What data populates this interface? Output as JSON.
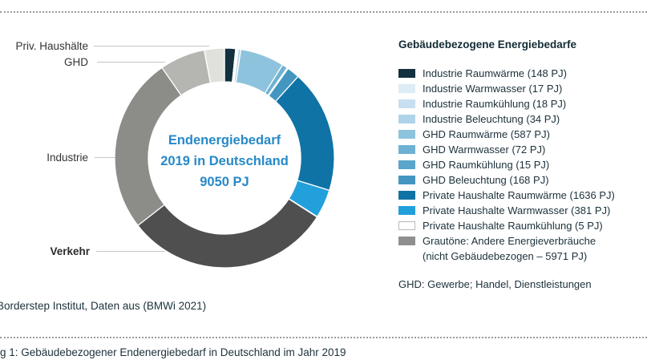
{
  "chart_data": {
    "type": "pie",
    "subtype": "donut",
    "title": "Endenergiebedarf 2019 in Deutschland 9050 PJ",
    "unit": "PJ",
    "total_pj": 9050,
    "start_angle_deg": 0,
    "direction": "clockwise",
    "segments": [
      {
        "name": "Industrie Raumwärme",
        "value_pj": 148,
        "color": "#12303e"
      },
      {
        "name": "Industrie Warmwasser",
        "value_pj": 17,
        "color": "#ddecf5"
      },
      {
        "name": "Industrie Raumkühlung",
        "value_pj": 18,
        "color": "#c7dff0"
      },
      {
        "name": "Industrie Beleuchtung",
        "value_pj": 34,
        "color": "#afd3e8"
      },
      {
        "name": "GHD Raumwärme",
        "value_pj": 587,
        "color": "#8ec3dd"
      },
      {
        "name": "GHD Warmwasser",
        "value_pj": 72,
        "color": "#6fb1d3"
      },
      {
        "name": "GHD Raumkühlung",
        "value_pj": 15,
        "color": "#5aa5cb"
      },
      {
        "name": "GHD Beleuchtung",
        "value_pj": 168,
        "color": "#4496c1"
      },
      {
        "name": "Private Haushalte Raumwärme",
        "value_pj": 1636,
        "color": "#0f73a5"
      },
      {
        "name": "Private Haushalte Warmwasser",
        "value_pj": 381,
        "color": "#22a0dc"
      },
      {
        "name": "Private Haushalte Raumkühlung",
        "value_pj": 5,
        "color": "#ffffff"
      },
      {
        "name": "Verkehr (andere Energieverbräuche, nicht gebäudebezogen)",
        "value_pj": 2754,
        "color": "#4f4f4f",
        "estimated": true
      },
      {
        "name": "Industrie (andere Energieverbräuche, nicht gebäudebezogen)",
        "value_pj": 2345,
        "color": "#8c8c89",
        "estimated": true
      },
      {
        "name": "GHD (andere Energieverbräuche, nicht gebäudebezogen)",
        "value_pj": 605,
        "color": "#b5b5b1",
        "estimated": true
      },
      {
        "name": "Priv. Haushalte (andere Energieverbräuche, nicht gebäudebezogen)",
        "value_pj": 267,
        "color": "#e0e0dc",
        "estimated": true
      }
    ],
    "other_total_pj": 5971
  },
  "donut_center": {
    "line1": "Endenergiebedarf",
    "line2": "2019 in Deutschland",
    "line3": "9050 PJ"
  },
  "sector_labels": {
    "private_households": "Priv. Haushälte",
    "ghd": "GHD",
    "industry": "Industrie",
    "transport": "Verkehr"
  },
  "legend": {
    "title": "Gebäudebezogene Energiebedarfe",
    "items": [
      {
        "label": "Industrie Raumwärme (148 PJ)",
        "color": "#12303e"
      },
      {
        "label": "Industrie Warmwasser (17 PJ)",
        "color": "#ddecf5"
      },
      {
        "label": "Industrie Raumkühlung (18 PJ)",
        "color": "#c7dff0"
      },
      {
        "label": "Industrie Beleuchtung (34 PJ)",
        "color": "#afd3e8"
      },
      {
        "label": "GHD Raumwärme (587 PJ)",
        "color": "#8ec3dd"
      },
      {
        "label": "GHD Warmwasser (72 PJ)",
        "color": "#6fb1d3"
      },
      {
        "label": "GHD Raumkühlung (15 PJ)",
        "color": "#5aa5cb"
      },
      {
        "label": "GHD Beleuchtung (168 PJ)",
        "color": "#4496c1"
      },
      {
        "label": "Private Haushalte Raumwärme (1636 PJ)",
        "color": "#0f73a5"
      },
      {
        "label": "Private Haushalte Warmwasser (381 PJ)",
        "color": "#22a0dc"
      },
      {
        "label": "Private Haushalte Raumkühlung (5 PJ)",
        "color": "#ffffff",
        "border": "#b9b9b9"
      },
      {
        "label": "Grautöne: Andere Energieverbräuche",
        "label2": "(nicht Gebäudebezogen – 5971 PJ)",
        "color": "#8f8f8f"
      }
    ],
    "note": "GHD: Gewerbe; Handel, Dienstleistungen"
  },
  "footer": {
    "source": "Borderstep Institut, Daten aus (BMWi 2021)",
    "caption": "g 1: Gebäudebezogener Endenergiebedarf in Deutschland im Jahr 2019"
  }
}
